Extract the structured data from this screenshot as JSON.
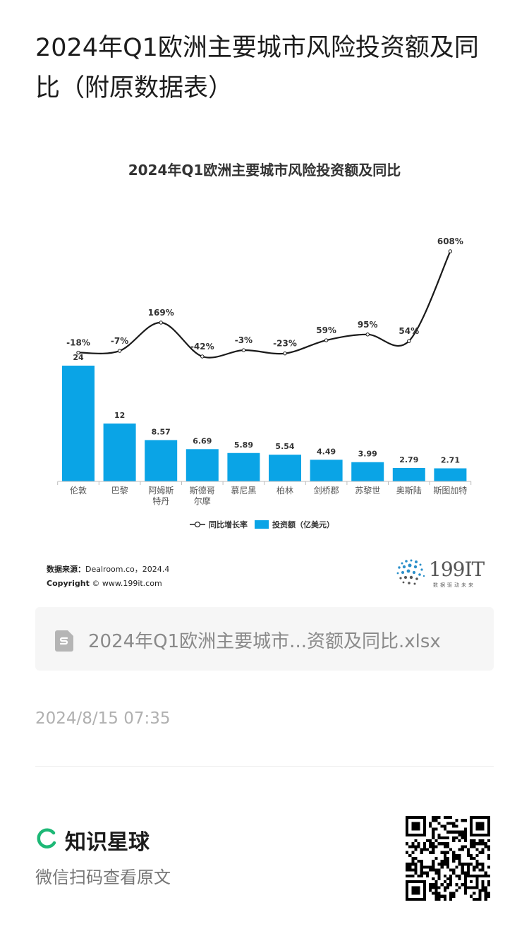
{
  "post": {
    "title": "2024年Q1欧洲主要城市风险投资额及同比（附原数据表）",
    "file_name": "2024年Q1欧洲主要城市...资额及同比.xlsx",
    "timestamp": "2024/8/15 07:35",
    "planet_name": "知识星球",
    "scan_hint": "微信扫码查看原文"
  },
  "source": {
    "line1_label": "数据来源：",
    "line1_value": "Dealroom.co，2024.4",
    "line2_label": "Copyright",
    "line2_value": "© www.199it.com"
  },
  "brand": {
    "number": "199IT",
    "tagline": "数据驱动未来"
  },
  "colors": {
    "bar": "#0aa4e6",
    "line": "#1a1a1a",
    "accent_green": "#1db876"
  },
  "chart_data": {
    "type": "bar",
    "title": "2024年Q1欧洲主要城市风险投资额及同比",
    "categories": [
      "伦敦",
      "巴黎",
      "阿姆斯特丹",
      "斯德哥尔摩",
      "慕尼黑",
      "柏林",
      "剑桥郡",
      "苏黎世",
      "奥斯陆",
      "斯图加特"
    ],
    "category_lines": [
      [
        "伦敦"
      ],
      [
        "巴黎"
      ],
      [
        "阿姆斯",
        "特丹"
      ],
      [
        "斯德哥",
        "尔摩"
      ],
      [
        "慕尼黑"
      ],
      [
        "柏林"
      ],
      [
        "剑桥郡"
      ],
      [
        "苏黎世"
      ],
      [
        "奥斯陆"
      ],
      [
        "斯图加特"
      ]
    ],
    "series": [
      {
        "name": "投资额（亿美元）",
        "type": "bar",
        "values": [
          24,
          12,
          8.57,
          6.69,
          5.89,
          5.54,
          4.49,
          3.99,
          2.79,
          2.71
        ],
        "labels": [
          "24",
          "12",
          "8.57",
          "6.69",
          "5.89",
          "5.54",
          "4.49",
          "3.99",
          "2.79",
          "2.71"
        ]
      },
      {
        "name": "同比增长率",
        "type": "line",
        "values": [
          -18,
          -7,
          169,
          -42,
          -3,
          -23,
          59,
          95,
          54,
          608
        ],
        "labels": [
          "-18%",
          "-7%",
          "169%",
          "-42%",
          "-3%",
          "-23%",
          "59%",
          "95%",
          "54%",
          "608%"
        ]
      }
    ],
    "legend_position": "bottom",
    "grid": false
  }
}
